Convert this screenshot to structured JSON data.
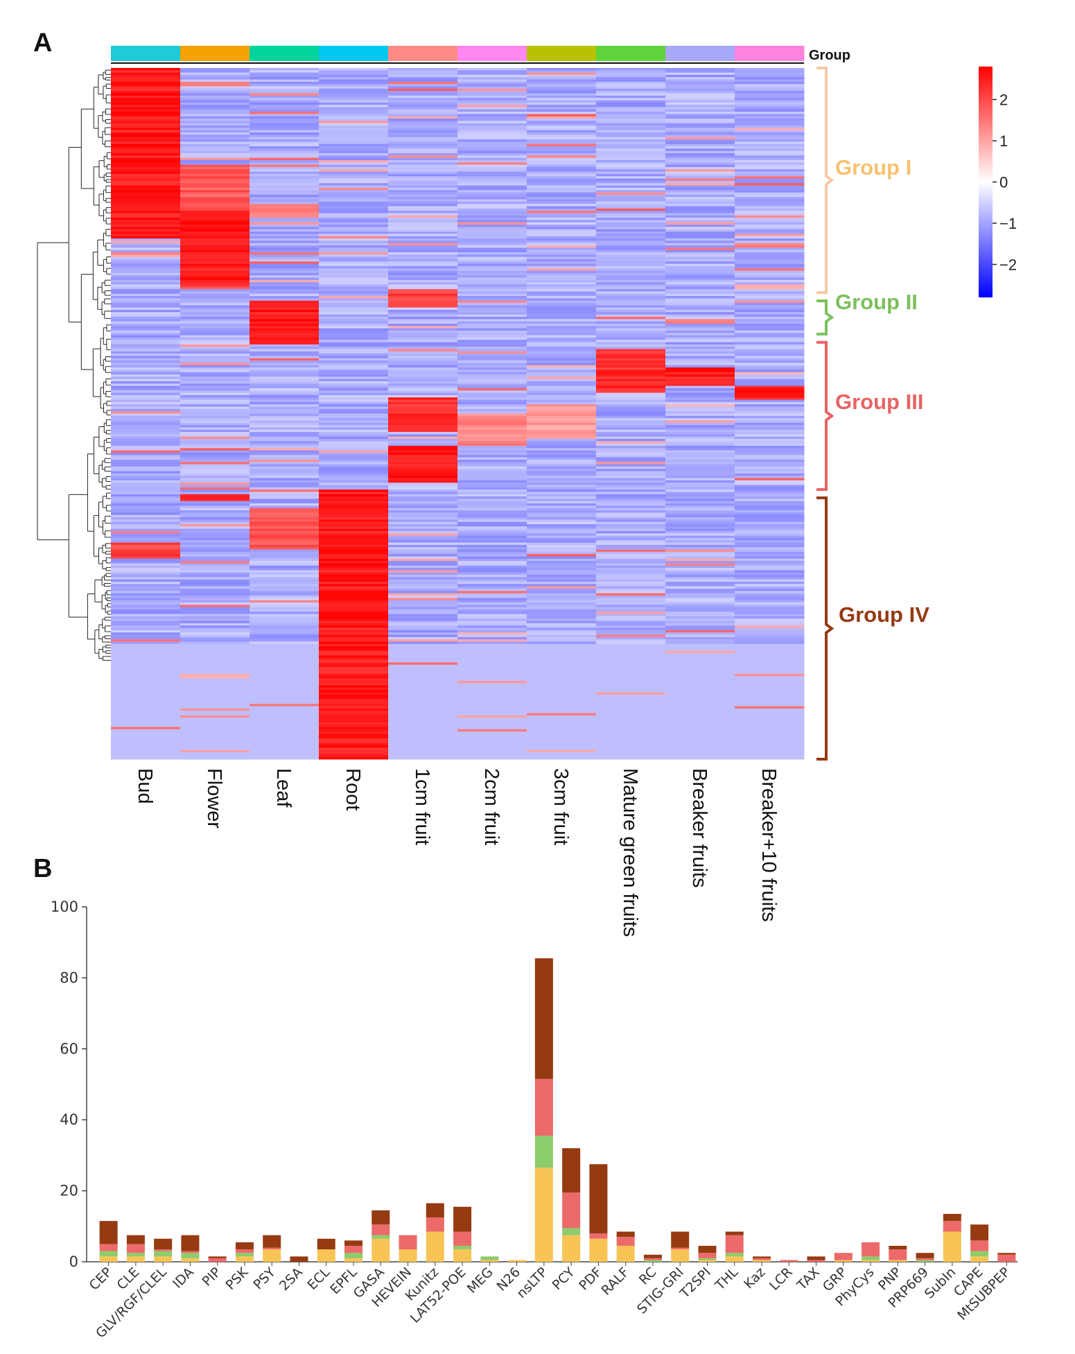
{
  "panels": {
    "a_label": "A",
    "b_label": "B"
  },
  "chart_data": [
    {
      "type": "heatmap",
      "annotation_label": "Group",
      "columns": [
        "Bud",
        "Flower",
        "Leaf",
        "Root",
        "1cm fruit",
        "2cm fruit",
        "3cm fruit",
        "Mature green fruits",
        "Breaker fruits",
        "Breaker+10 fruits"
      ],
      "column_colors": [
        "#1ecbd6",
        "#f4a300",
        "#00d49a",
        "#00c8f0",
        "#ff8c84",
        "#ff87f0",
        "#b8c200",
        "#5fd43a",
        "#a8a8f8",
        "#ff82dc"
      ],
      "colorscale": {
        "min": -2.8,
        "max": 2.8,
        "ticks": [
          2,
          1,
          0,
          -1,
          -2
        ],
        "tick_labels": [
          "2",
          "1",
          "0",
          "−1",
          "−2"
        ],
        "low_color": "#0000ff",
        "mid_color": "#ffffff",
        "high_color": "#ff0000"
      },
      "groups": [
        {
          "name": "Group I",
          "color": "#f8c070",
          "bracket_color": "#f6c8a8",
          "rows": [
            0.0,
            0.325
          ]
        },
        {
          "name": "Group II",
          "color": "#7cc05c",
          "bracket_color": "#7cc05c",
          "rows": [
            0.337,
            0.385
          ]
        },
        {
          "name": "Group III",
          "color": "#e86464",
          "bracket_color": "#e86464",
          "rows": [
            0.397,
            0.61
          ]
        },
        {
          "name": "Group IV",
          "color": "#963a12",
          "bracket_color": "#963a12",
          "rows": [
            0.622,
            1.0
          ]
        }
      ]
    },
    {
      "type": "bar",
      "stacked": true,
      "categories": [
        "CEP",
        "CLE",
        "GLV/RGF/CLEL",
        "IDA",
        "PIP",
        "PSK",
        "PSY",
        "2SA",
        "ECL",
        "EPFL",
        "GASA",
        "HEVEIN",
        "Kunitz",
        "LAT52-POE",
        "MEG",
        "N26",
        "nsLTP",
        "PCY",
        "PDF",
        "RALF",
        "RC",
        "STIG-GRI",
        "T2SPI",
        "THL",
        "Kaz",
        "LCR",
        "TAX",
        "GRP",
        "PhyCys",
        "PNP",
        "PRP669",
        "SubIn",
        "CAPE",
        "MtSUBPEP"
      ],
      "series": [
        {
          "color": "#f8c456",
          "values": [
            1.5,
            1.5,
            1.5,
            1,
            0,
            1.5,
            3.5,
            0,
            3.5,
            1,
            6.5,
            3.5,
            8.5,
            3.5,
            0.5,
            0.5,
            26.5,
            7.5,
            6.5,
            4.5,
            0,
            3.5,
            0.5,
            1.5,
            0.5,
            0,
            0,
            0.5,
            0.5,
            0.5,
            0,
            8.5,
            1.5,
            0
          ]
        },
        {
          "color": "#8ccc6c",
          "values": [
            1.5,
            1,
            1.5,
            1.5,
            0,
            1,
            0,
            0,
            0,
            1.5,
            1,
            0,
            0,
            1,
            1,
            0,
            9,
            2,
            0,
            0,
            0.5,
            0,
            0.5,
            1,
            0,
            0,
            0,
            0,
            1,
            0,
            0.5,
            0,
            1.5,
            0
          ]
        },
        {
          "color": "#ec6a6a",
          "values": [
            2,
            2.5,
            0.5,
            0.5,
            1,
            1,
            0.5,
            0,
            0,
            2,
            3,
            4,
            4,
            4,
            0,
            0,
            16,
            10,
            1.5,
            2.5,
            0.5,
            0.5,
            1.5,
            5,
            0.5,
            0.5,
            0.5,
            2,
            4,
            3,
            0.5,
            3,
            3,
            2
          ]
        },
        {
          "color": "#963a12",
          "values": [
            6.5,
            2.5,
            3,
            4.5,
            0.5,
            2,
            3.5,
            1.5,
            3,
            1.5,
            4,
            0,
            4,
            7,
            0,
            0,
            34,
            12.5,
            19.5,
            1.5,
            1,
            4.5,
            2,
            1,
            0.5,
            0,
            1,
            0,
            0,
            1,
            1.5,
            2,
            4.5,
            0.5
          ]
        }
      ],
      "ylim": [
        0,
        100
      ],
      "yticks": [
        0,
        20,
        40,
        60,
        80,
        100
      ],
      "ytick_labels": [
        "0",
        "20",
        "40",
        "60",
        "80",
        "100"
      ]
    }
  ]
}
